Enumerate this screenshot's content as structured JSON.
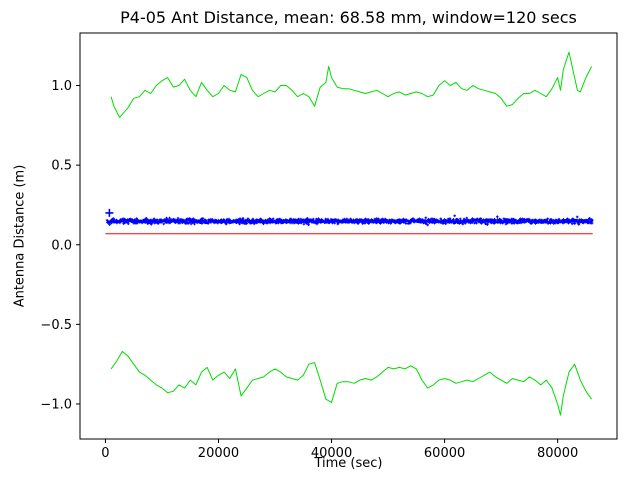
{
  "title": "P4-05 Ant Distance, mean: 68.58 mm, window=120 secs",
  "chart_data": {
    "type": "line",
    "title": "P4-05 Ant Distance, mean: 68.58 mm, window=120 secs",
    "xlabel": "Time (sec)",
    "ylabel": "Antenna Distance (m)",
    "xlim": [
      -4500,
      90500
    ],
    "ylim": [
      -1.22,
      1.33
    ],
    "xticks": [
      0,
      20000,
      40000,
      60000,
      80000
    ],
    "yticks": [
      -1.0,
      -0.5,
      0.0,
      0.5,
      1.0
    ],
    "grid": false,
    "legend": "none",
    "background": "#ffffff",
    "axis_color": "#000000",
    "mean_mm": 68.58,
    "window_secs": 120,
    "series": [
      {
        "name": "upper-envelope-line",
        "color": "#00dd00",
        "points": [
          [
            1000,
            0.93
          ],
          [
            1500,
            0.87
          ],
          [
            2500,
            0.8
          ],
          [
            4000,
            0.86
          ],
          [
            5000,
            0.92
          ],
          [
            6000,
            0.93
          ],
          [
            7000,
            0.97
          ],
          [
            8000,
            0.95
          ],
          [
            9000,
            1.0
          ],
          [
            10000,
            1.03
          ],
          [
            11000,
            1.05
          ],
          [
            12000,
            0.99
          ],
          [
            13000,
            1.0
          ],
          [
            14000,
            1.04
          ],
          [
            15000,
            0.97
          ],
          [
            16000,
            0.93
          ],
          [
            17000,
            1.02
          ],
          [
            18000,
            0.97
          ],
          [
            19000,
            0.93
          ],
          [
            20000,
            0.95
          ],
          [
            21000,
            1.0
          ],
          [
            22000,
            0.97
          ],
          [
            23000,
            0.96
          ],
          [
            24000,
            1.07
          ],
          [
            25000,
            1.05
          ],
          [
            26000,
            0.97
          ],
          [
            27000,
            0.93
          ],
          [
            28000,
            0.95
          ],
          [
            29000,
            0.97
          ],
          [
            30000,
            0.96
          ],
          [
            31000,
            1.0
          ],
          [
            32000,
            1.0
          ],
          [
            33000,
            0.97
          ],
          [
            34000,
            0.93
          ],
          [
            35000,
            0.95
          ],
          [
            36000,
            0.93
          ],
          [
            37000,
            0.87
          ],
          [
            38000,
            0.99
          ],
          [
            39000,
            1.02
          ],
          [
            39500,
            1.12
          ],
          [
            40000,
            1.05
          ],
          [
            41000,
            0.99
          ],
          [
            42000,
            0.98
          ],
          [
            43000,
            0.98
          ],
          [
            44000,
            0.97
          ],
          [
            45000,
            0.96
          ],
          [
            46000,
            0.95
          ],
          [
            47000,
            0.96
          ],
          [
            48000,
            0.97
          ],
          [
            49000,
            0.95
          ],
          [
            50000,
            0.93
          ],
          [
            51000,
            0.95
          ],
          [
            52000,
            0.96
          ],
          [
            53000,
            0.94
          ],
          [
            54000,
            0.95
          ],
          [
            55000,
            0.96
          ],
          [
            56000,
            0.95
          ],
          [
            57000,
            0.93
          ],
          [
            58000,
            0.94
          ],
          [
            59000,
            1.0
          ],
          [
            60000,
            1.03
          ],
          [
            61000,
            1.0
          ],
          [
            62000,
            1.02
          ],
          [
            63000,
            0.98
          ],
          [
            64000,
            0.97
          ],
          [
            65000,
            1.0
          ],
          [
            66000,
            0.98
          ],
          [
            67000,
            0.97
          ],
          [
            68000,
            0.96
          ],
          [
            69000,
            0.95
          ],
          [
            70000,
            0.92
          ],
          [
            71000,
            0.87
          ],
          [
            72000,
            0.88
          ],
          [
            73000,
            0.92
          ],
          [
            74000,
            0.95
          ],
          [
            75000,
            0.95
          ],
          [
            76000,
            0.97
          ],
          [
            77000,
            0.95
          ],
          [
            78000,
            0.93
          ],
          [
            79000,
            0.98
          ],
          [
            80000,
            1.05
          ],
          [
            80500,
            0.97
          ],
          [
            81000,
            1.1
          ],
          [
            82000,
            1.21
          ],
          [
            83000,
            1.05
          ],
          [
            83500,
            0.97
          ],
          [
            84000,
            0.96
          ],
          [
            85000,
            1.05
          ],
          [
            86000,
            1.12
          ]
        ]
      },
      {
        "name": "lower-envelope-line",
        "color": "#00dd00",
        "points": [
          [
            1000,
            -0.78
          ],
          [
            2000,
            -0.73
          ],
          [
            3000,
            -0.67
          ],
          [
            4000,
            -0.7
          ],
          [
            5000,
            -0.75
          ],
          [
            6000,
            -0.8
          ],
          [
            7000,
            -0.82
          ],
          [
            8000,
            -0.85
          ],
          [
            9000,
            -0.88
          ],
          [
            10000,
            -0.9
          ],
          [
            11000,
            -0.93
          ],
          [
            12000,
            -0.92
          ],
          [
            13000,
            -0.88
          ],
          [
            14000,
            -0.9
          ],
          [
            15000,
            -0.85
          ],
          [
            16000,
            -0.88
          ],
          [
            17000,
            -0.8
          ],
          [
            18000,
            -0.77
          ],
          [
            19000,
            -0.85
          ],
          [
            20000,
            -0.82
          ],
          [
            21000,
            -0.8
          ],
          [
            22000,
            -0.84
          ],
          [
            23000,
            -0.78
          ],
          [
            24000,
            -0.95
          ],
          [
            25000,
            -0.9
          ],
          [
            26000,
            -0.85
          ],
          [
            27000,
            -0.84
          ],
          [
            28000,
            -0.83
          ],
          [
            29000,
            -0.8
          ],
          [
            30000,
            -0.78
          ],
          [
            31000,
            -0.8
          ],
          [
            32000,
            -0.83
          ],
          [
            33000,
            -0.84
          ],
          [
            34000,
            -0.85
          ],
          [
            35000,
            -0.82
          ],
          [
            36000,
            -0.75
          ],
          [
            37000,
            -0.74
          ],
          [
            38000,
            -0.85
          ],
          [
            39000,
            -0.97
          ],
          [
            40000,
            -0.99
          ],
          [
            41000,
            -0.87
          ],
          [
            42000,
            -0.86
          ],
          [
            43000,
            -0.86
          ],
          [
            44000,
            -0.87
          ],
          [
            45000,
            -0.85
          ],
          [
            46000,
            -0.84
          ],
          [
            47000,
            -0.85
          ],
          [
            48000,
            -0.83
          ],
          [
            49000,
            -0.8
          ],
          [
            50000,
            -0.77
          ],
          [
            51000,
            -0.78
          ],
          [
            52000,
            -0.77
          ],
          [
            53000,
            -0.78
          ],
          [
            54000,
            -0.76
          ],
          [
            55000,
            -0.78
          ],
          [
            56000,
            -0.85
          ],
          [
            57000,
            -0.9
          ],
          [
            58000,
            -0.88
          ],
          [
            59000,
            -0.85
          ],
          [
            60000,
            -0.84
          ],
          [
            61000,
            -0.85
          ],
          [
            62000,
            -0.87
          ],
          [
            63000,
            -0.86
          ],
          [
            64000,
            -0.85
          ],
          [
            65000,
            -0.86
          ],
          [
            66000,
            -0.84
          ],
          [
            67000,
            -0.82
          ],
          [
            68000,
            -0.8
          ],
          [
            69000,
            -0.83
          ],
          [
            70000,
            -0.85
          ],
          [
            71000,
            -0.87
          ],
          [
            72000,
            -0.84
          ],
          [
            73000,
            -0.85
          ],
          [
            74000,
            -0.86
          ],
          [
            75000,
            -0.83
          ],
          [
            76000,
            -0.85
          ],
          [
            77000,
            -0.88
          ],
          [
            78000,
            -0.85
          ],
          [
            79000,
            -0.9
          ],
          [
            80000,
            -1.0
          ],
          [
            80500,
            -1.07
          ],
          [
            81000,
            -0.95
          ],
          [
            82000,
            -0.8
          ],
          [
            83000,
            -0.75
          ],
          [
            84000,
            -0.85
          ],
          [
            85000,
            -0.92
          ],
          [
            86000,
            -0.97
          ]
        ]
      },
      {
        "name": "mean-line",
        "color": "#ff0000",
        "points": [
          [
            0,
            0.0686
          ],
          [
            86200,
            0.0686
          ]
        ]
      }
    ],
    "noise_band": {
      "name": "antenna-distance-points",
      "color": "#0000ff",
      "marker": "+",
      "x_start": 300,
      "x_end": 86200,
      "x_step": 55,
      "mean": 0.148,
      "spread": 0.022,
      "seed": 42
    },
    "markers": [
      {
        "name": "start-marker",
        "x": 700,
        "y": 0.2,
        "symbol": "+",
        "color": "#0000ff"
      }
    ]
  }
}
